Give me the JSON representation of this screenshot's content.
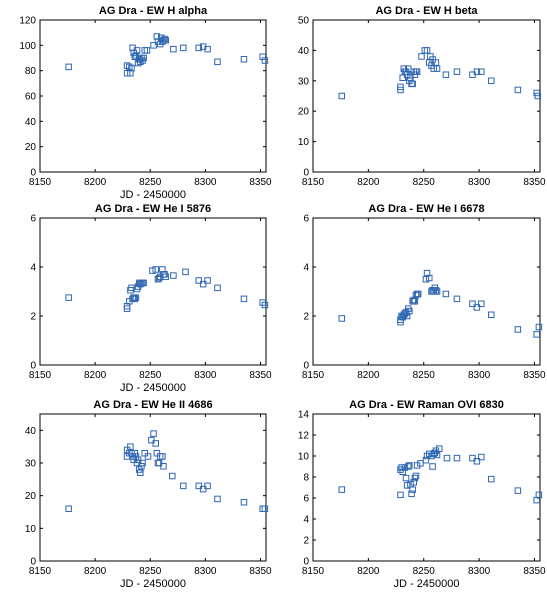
{
  "chart_data": [
    {
      "type": "scatter",
      "title": "AG Dra - EW H alpha",
      "xlabel": "JD - 2450000",
      "ylabel": "",
      "xlim": [
        8150,
        8355
      ],
      "ylim": [
        0,
        120
      ],
      "xticks": [
        8150,
        8200,
        8250,
        8300,
        8350
      ],
      "yticks": [
        0,
        20,
        40,
        60,
        80,
        100,
        120
      ],
      "marker": "square",
      "color": "#2f66b3",
      "points": [
        [
          8176,
          83
        ],
        [
          8229,
          78
        ],
        [
          8229,
          84
        ],
        [
          8231,
          83
        ],
        [
          8232,
          78
        ],
        [
          8233,
          82
        ],
        [
          8234,
          98
        ],
        [
          8235,
          94
        ],
        [
          8236,
          91
        ],
        [
          8237,
          92
        ],
        [
          8238,
          96
        ],
        [
          8239,
          86
        ],
        [
          8240,
          89
        ],
        [
          8241,
          87
        ],
        [
          8242,
          90
        ],
        [
          8243,
          88
        ],
        [
          8244,
          90
        ],
        [
          8245,
          96
        ],
        [
          8247,
          96
        ],
        [
          8253,
          100
        ],
        [
          8256,
          107
        ],
        [
          8257,
          103
        ],
        [
          8259,
          101
        ],
        [
          8260,
          106
        ],
        [
          8261,
          103
        ],
        [
          8262,
          104
        ],
        [
          8263,
          105
        ],
        [
          8264,
          104
        ],
        [
          8271,
          97
        ],
        [
          8280,
          98
        ],
        [
          8294,
          98
        ],
        [
          8298,
          99
        ],
        [
          8302,
          97
        ],
        [
          8311,
          87
        ],
        [
          8335,
          89
        ],
        [
          8352,
          91
        ],
        [
          8354,
          88
        ]
      ]
    },
    {
      "type": "scatter",
      "title": "AG Dra - EW H beta",
      "xlabel": "",
      "ylabel": "",
      "xlim": [
        8150,
        8355
      ],
      "ylim": [
        0,
        50
      ],
      "xticks": [
        8150,
        8200,
        8250,
        8300,
        8350
      ],
      "yticks": [
        0,
        10,
        20,
        30,
        40,
        50
      ],
      "marker": "square",
      "color": "#2f66b3",
      "points": [
        [
          8176,
          25
        ],
        [
          8229,
          27
        ],
        [
          8229,
          28
        ],
        [
          8231,
          31
        ],
        [
          8232,
          34
        ],
        [
          8233,
          33
        ],
        [
          8234,
          33
        ],
        [
          8235,
          32
        ],
        [
          8236,
          34
        ],
        [
          8237,
          30
        ],
        [
          8238,
          31
        ],
        [
          8239,
          29
        ],
        [
          8240,
          29
        ],
        [
          8241,
          33
        ],
        [
          8242,
          32
        ],
        [
          8243,
          33
        ],
        [
          8244,
          33
        ],
        [
          8248,
          38
        ],
        [
          8251,
          40
        ],
        [
          8253,
          40
        ],
        [
          8255,
          36
        ],
        [
          8256,
          38
        ],
        [
          8257,
          35
        ],
        [
          8258,
          37
        ],
        [
          8259,
          34
        ],
        [
          8261,
          36
        ],
        [
          8262,
          34
        ],
        [
          8270,
          32
        ],
        [
          8280,
          33
        ],
        [
          8294,
          32
        ],
        [
          8298,
          33
        ],
        [
          8302,
          33
        ],
        [
          8311,
          30
        ],
        [
          8335,
          27
        ],
        [
          8352,
          26
        ],
        [
          8353,
          25
        ]
      ]
    },
    {
      "type": "scatter",
      "title": "AG Dra - EW He I 5876",
      "xlabel": "JD - 2450000",
      "ylabel": "",
      "xlim": [
        8150,
        8355
      ],
      "ylim": [
        0,
        6
      ],
      "xticks": [
        8150,
        8200,
        8250,
        8300,
        8350
      ],
      "yticks": [
        0,
        2,
        4,
        6
      ],
      "marker": "square",
      "color": "#2f66b3",
      "points": [
        [
          8176,
          2.75
        ],
        [
          8229,
          2.3
        ],
        [
          8229,
          2.4
        ],
        [
          8231,
          2.6
        ],
        [
          8232,
          3.05
        ],
        [
          8233,
          3.15
        ],
        [
          8234,
          2.7
        ],
        [
          8235,
          2.75
        ],
        [
          8236,
          2.7
        ],
        [
          8237,
          2.75
        ],
        [
          8238,
          3.1
        ],
        [
          8239,
          3.2
        ],
        [
          8240,
          3.35
        ],
        [
          8241,
          3.3
        ],
        [
          8242,
          3.35
        ],
        [
          8243,
          3.35
        ],
        [
          8244,
          3.35
        ],
        [
          8252,
          3.85
        ],
        [
          8255,
          3.9
        ],
        [
          8257,
          3.5
        ],
        [
          8258,
          3.55
        ],
        [
          8259,
          3.6
        ],
        [
          8261,
          3.9
        ],
        [
          8262,
          3.7
        ],
        [
          8263,
          3.7
        ],
        [
          8264,
          3.6
        ],
        [
          8271,
          3.65
        ],
        [
          8282,
          3.8
        ],
        [
          8294,
          3.45
        ],
        [
          8298,
          3.3
        ],
        [
          8302,
          3.45
        ],
        [
          8311,
          3.15
        ],
        [
          8335,
          2.7
        ],
        [
          8352,
          2.55
        ],
        [
          8354,
          2.45
        ]
      ]
    },
    {
      "type": "scatter",
      "title": "AG Dra - EW He I 6678",
      "xlabel": "",
      "ylabel": "",
      "xlim": [
        8150,
        8355
      ],
      "ylim": [
        0,
        6
      ],
      "xticks": [
        8150,
        8200,
        8250,
        8300,
        8350
      ],
      "yticks": [
        0,
        2,
        4,
        6
      ],
      "marker": "square",
      "color": "#2f66b3",
      "points": [
        [
          8176,
          1.9
        ],
        [
          8229,
          1.75
        ],
        [
          8229,
          1.85
        ],
        [
          8230,
          2.0
        ],
        [
          8231,
          1.95
        ],
        [
          8232,
          2.05
        ],
        [
          8233,
          2.1
        ],
        [
          8234,
          2.15
        ],
        [
          8235,
          2.0
        ],
        [
          8236,
          2.3
        ],
        [
          8237,
          2.2
        ],
        [
          8240,
          2.6
        ],
        [
          8241,
          2.65
        ],
        [
          8242,
          2.6
        ],
        [
          8243,
          2.85
        ],
        [
          8244,
          2.9
        ],
        [
          8245,
          2.9
        ],
        [
          8252,
          3.5
        ],
        [
          8253,
          3.75
        ],
        [
          8255,
          3.55
        ],
        [
          8257,
          3.0
        ],
        [
          8258,
          3.05
        ],
        [
          8259,
          3.05
        ],
        [
          8260,
          3.15
        ],
        [
          8261,
          3.05
        ],
        [
          8262,
          3.0
        ],
        [
          8270,
          2.9
        ],
        [
          8280,
          2.7
        ],
        [
          8294,
          2.5
        ],
        [
          8298,
          2.35
        ],
        [
          8302,
          2.5
        ],
        [
          8311,
          2.05
        ],
        [
          8335,
          1.45
        ],
        [
          8352,
          1.25
        ],
        [
          8354,
          1.55
        ]
      ]
    },
    {
      "type": "scatter",
      "title": "AG Dra - EW He II 4686",
      "xlabel": "JD - 2450000",
      "ylabel": "",
      "xlim": [
        8150,
        8355
      ],
      "ylim": [
        0,
        45
      ],
      "xticks": [
        8150,
        8200,
        8250,
        8300,
        8350
      ],
      "yticks": [
        0,
        10,
        20,
        30,
        40
      ],
      "marker": "square",
      "color": "#2f66b3",
      "points": [
        [
          8176,
          16
        ],
        [
          8229,
          32
        ],
        [
          8229,
          34
        ],
        [
          8231,
          33
        ],
        [
          8232,
          35
        ],
        [
          8233,
          33
        ],
        [
          8234,
          32
        ],
        [
          8235,
          31
        ],
        [
          8236,
          33
        ],
        [
          8237,
          32
        ],
        [
          8238,
          30
        ],
        [
          8239,
          31
        ],
        [
          8240,
          28
        ],
        [
          8241,
          27
        ],
        [
          8242,
          29
        ],
        [
          8243,
          30
        ],
        [
          8245,
          33
        ],
        [
          8248,
          32
        ],
        [
          8251,
          37
        ],
        [
          8253,
          39
        ],
        [
          8255,
          36
        ],
        [
          8256,
          33
        ],
        [
          8257,
          30
        ],
        [
          8258,
          30
        ],
        [
          8259,
          32
        ],
        [
          8261,
          32
        ],
        [
          8262,
          29
        ],
        [
          8270,
          26
        ],
        [
          8280,
          23
        ],
        [
          8294,
          23
        ],
        [
          8298,
          22
        ],
        [
          8302,
          23
        ],
        [
          8311,
          19
        ],
        [
          8335,
          18
        ],
        [
          8352,
          16
        ],
        [
          8354,
          16
        ]
      ]
    },
    {
      "type": "scatter",
      "title": "AG Dra - EW Raman OVI 6830",
      "xlabel": "JD - 2450000",
      "ylabel": "",
      "xlim": [
        8150,
        8355
      ],
      "ylim": [
        0,
        14
      ],
      "xticks": [
        8150,
        8200,
        8250,
        8300,
        8350
      ],
      "yticks": [
        0,
        2,
        4,
        6,
        8,
        10,
        12,
        14
      ],
      "marker": "square",
      "color": "#2f66b3",
      "points": [
        [
          8176,
          6.8
        ],
        [
          8229,
          6.3
        ],
        [
          8229,
          8.7
        ],
        [
          8230,
          8.9
        ],
        [
          8231,
          8.5
        ],
        [
          8233,
          8.9
        ],
        [
          8234,
          7.9
        ],
        [
          8235,
          7.2
        ],
        [
          8236,
          9.0
        ],
        [
          8237,
          9.1
        ],
        [
          8238,
          7.3
        ],
        [
          8239,
          6.4
        ],
        [
          8240,
          6.8
        ],
        [
          8241,
          7.5
        ],
        [
          8242,
          7.9
        ],
        [
          8243,
          8.1
        ],
        [
          8244,
          9.1
        ],
        [
          8247,
          9.3
        ],
        [
          8252,
          9.6
        ],
        [
          8253,
          10.0
        ],
        [
          8255,
          10.2
        ],
        [
          8257,
          10.0
        ],
        [
          8258,
          9.0
        ],
        [
          8259,
          10.2
        ],
        [
          8260,
          10.3
        ],
        [
          8261,
          10.5
        ],
        [
          8262,
          10.1
        ],
        [
          8264,
          10.7
        ],
        [
          8271,
          9.8
        ],
        [
          8280,
          9.8
        ],
        [
          8294,
          9.8
        ],
        [
          8298,
          9.5
        ],
        [
          8302,
          9.9
        ],
        [
          8311,
          7.8
        ],
        [
          8335,
          6.7
        ],
        [
          8352,
          5.8
        ],
        [
          8354,
          6.3
        ]
      ]
    }
  ]
}
